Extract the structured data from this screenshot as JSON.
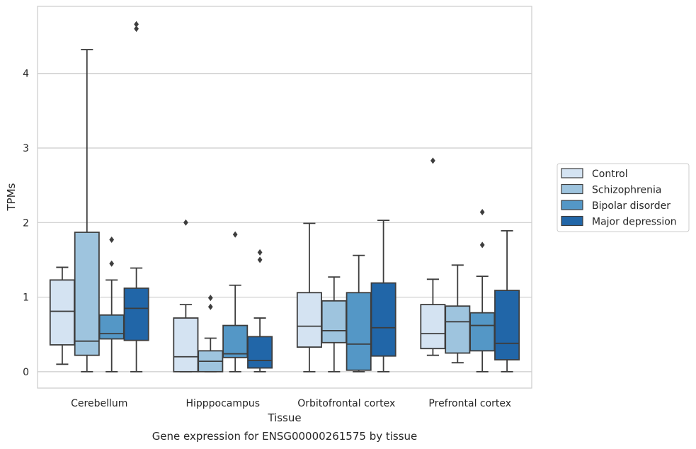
{
  "caption": "Gene expression for ENSG00000261575 by tissue",
  "chart_data": {
    "type": "boxplot",
    "title": "",
    "xlabel": "Tissue",
    "ylabel": "TPMs",
    "ylim": [
      -0.22,
      4.9
    ],
    "yticks": [
      0,
      1,
      2,
      3,
      4
    ],
    "grid": true,
    "legend_position": "right",
    "categories": [
      "Cerebellum",
      "Hipppocampus",
      "Orbitofrontal cortex",
      "Prefrontal cortex"
    ],
    "series": [
      {
        "name": "Control",
        "color": "#d4e3f2",
        "boxes": [
          {
            "whislo": 0.1,
            "q1": 0.36,
            "med": 0.81,
            "q3": 1.23,
            "whishi": 1.4,
            "fliers": []
          },
          {
            "whislo": 0.0,
            "q1": 0.0,
            "med": 0.2,
            "q3": 0.72,
            "whishi": 0.9,
            "fliers": [
              2.0
            ]
          },
          {
            "whislo": 0.0,
            "q1": 0.33,
            "med": 0.61,
            "q3": 1.06,
            "whishi": 1.99,
            "fliers": []
          },
          {
            "whislo": 0.22,
            "q1": 0.31,
            "med": 0.51,
            "q3": 0.9,
            "whishi": 1.24,
            "fliers": [
              2.83
            ]
          }
        ]
      },
      {
        "name": "Schizophrenia",
        "color": "#9ec4de",
        "boxes": [
          {
            "whislo": 0.0,
            "q1": 0.22,
            "med": 0.41,
            "q3": 1.87,
            "whishi": 4.32,
            "fliers": []
          },
          {
            "whislo": 0.0,
            "q1": 0.0,
            "med": 0.14,
            "q3": 0.28,
            "whishi": 0.45,
            "fliers": [
              0.87,
              0.99
            ]
          },
          {
            "whislo": 0.0,
            "q1": 0.39,
            "med": 0.55,
            "q3": 0.95,
            "whishi": 1.27,
            "fliers": []
          },
          {
            "whislo": 0.12,
            "q1": 0.25,
            "med": 0.67,
            "q3": 0.88,
            "whishi": 1.43,
            "fliers": []
          }
        ]
      },
      {
        "name": "Bipolar disorder",
        "color": "#5497c6",
        "boxes": [
          {
            "whislo": 0.0,
            "q1": 0.44,
            "med": 0.51,
            "q3": 0.76,
            "whishi": 1.23,
            "fliers": [
              1.45,
              1.77
            ]
          },
          {
            "whislo": 0.0,
            "q1": 0.19,
            "med": 0.24,
            "q3": 0.62,
            "whishi": 1.16,
            "fliers": [
              1.84
            ]
          },
          {
            "whislo": 0.0,
            "q1": 0.02,
            "med": 0.37,
            "q3": 1.06,
            "whishi": 1.56,
            "fliers": []
          },
          {
            "whislo": 0.0,
            "q1": 0.28,
            "med": 0.62,
            "q3": 0.79,
            "whishi": 1.28,
            "fliers": [
              1.7,
              2.14
            ]
          }
        ]
      },
      {
        "name": "Major depression",
        "color": "#2166a8",
        "boxes": [
          {
            "whislo": 0.0,
            "q1": 0.42,
            "med": 0.85,
            "q3": 1.12,
            "whishi": 1.39,
            "fliers": [
              4.6,
              4.66
            ]
          },
          {
            "whislo": 0.0,
            "q1": 0.05,
            "med": 0.15,
            "q3": 0.47,
            "whishi": 0.72,
            "fliers": [
              1.5,
              1.6
            ]
          },
          {
            "whislo": 0.0,
            "q1": 0.21,
            "med": 0.59,
            "q3": 1.19,
            "whishi": 2.03,
            "fliers": []
          },
          {
            "whislo": 0.0,
            "q1": 0.16,
            "med": 0.38,
            "q3": 1.09,
            "whishi": 1.89,
            "fliers": []
          }
        ]
      }
    ]
  }
}
